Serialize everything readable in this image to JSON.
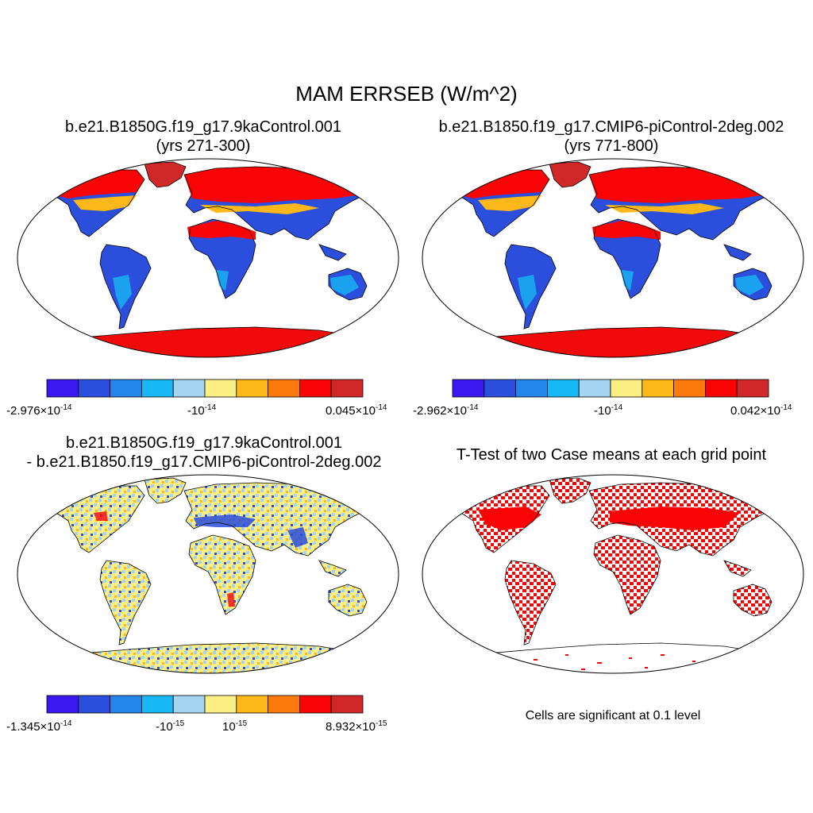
{
  "figure": {
    "title": "MAM ERRSEB (W/m^2)",
    "colormap": [
      "#3c18f0",
      "#2c4edc",
      "#2486ea",
      "#18b8f4",
      "#a4d4f0",
      "#fcf084",
      "#fcb818",
      "#fc7a0c",
      "#f80404",
      "#d02828"
    ]
  },
  "panels": [
    {
      "id": "case1",
      "title_line1": "b.e21.B1850G.f19_g17.9kaControl.001",
      "title_line2": "(yrs 271-300)",
      "colorbar": {
        "left": {
          "mantissa": "-2.976",
          "exponent": "-14"
        },
        "mid": {
          "base": "-10",
          "exponent": "-14"
        },
        "right": {
          "mantissa": "0.045",
          "exponent": "-14"
        }
      }
    },
    {
      "id": "case2",
      "title_line1": "b.e21.B1850.f19_g17.CMIP6-piControl-2deg.002",
      "title_line2": "(yrs 771-800)",
      "colorbar": {
        "left": {
          "mantissa": "-2.962",
          "exponent": "-14"
        },
        "mid": {
          "base": "-10",
          "exponent": "-14"
        },
        "right": {
          "mantissa": "0.042",
          "exponent": "-14"
        }
      }
    },
    {
      "id": "difference",
      "title_line1": "b.e21.B1850G.f19_g17.9kaControl.001",
      "title_line2": "- b.e21.B1850.f19_g17.CMIP6-piControl-2deg.002",
      "colorbar": {
        "left": {
          "mantissa": "-1.345",
          "exponent": "-14"
        },
        "mid1": {
          "base": "-10",
          "exponent": "-15"
        },
        "mid2": {
          "base": "10",
          "exponent": "-15"
        },
        "right": {
          "mantissa": "8.932",
          "exponent": "-15"
        }
      }
    },
    {
      "id": "ttest",
      "title_line1": "T-Test of two Case means at each grid point",
      "note": "Cells are significant at 0.1 level"
    }
  ]
}
